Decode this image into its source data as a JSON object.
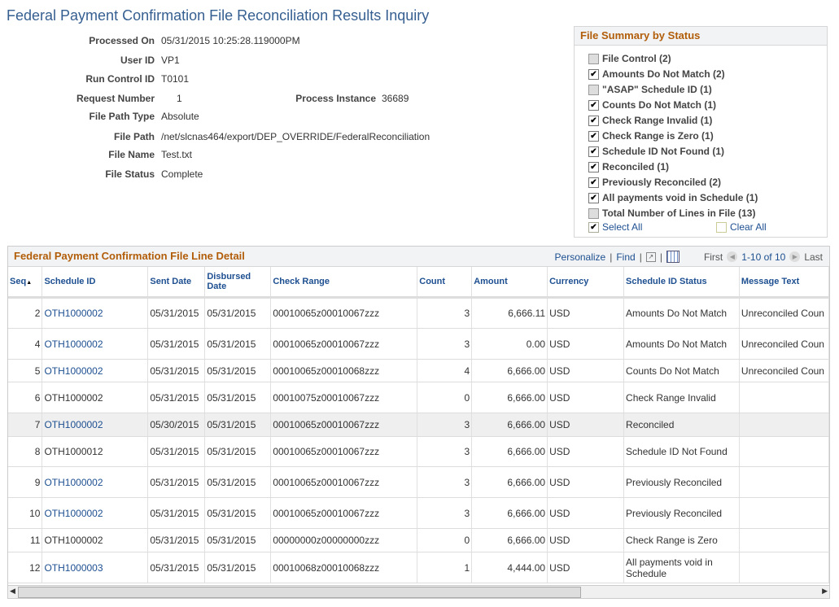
{
  "page_title": "Federal Payment Confirmation File Reconciliation Results Inquiry",
  "fields": {
    "processed_on": {
      "label": "Processed On",
      "value": "05/31/2015 10:25:28.119000PM"
    },
    "user_id": {
      "label": "User ID",
      "value": "VP1"
    },
    "run_control_id": {
      "label": "Run Control ID",
      "value": "T0101"
    },
    "request_number": {
      "label": "Request Number",
      "value": "1"
    },
    "process_instance": {
      "label": "Process Instance",
      "value": "36689"
    },
    "file_path_type": {
      "label": "File Path Type",
      "value": "Absolute"
    },
    "file_path": {
      "label": "File Path",
      "value": "/net/slcnas464/export/DEP_OVERRIDE/FederalReconciliation"
    },
    "file_name": {
      "label": "File Name",
      "value": "Test.txt"
    },
    "file_status": {
      "label": "File Status",
      "value": "Complete"
    }
  },
  "summary": {
    "title": "File Summary by Status",
    "items": [
      {
        "label": "File Control (2)",
        "checked": false,
        "disabled": true
      },
      {
        "label": "Amounts Do Not Match (2)",
        "checked": true,
        "disabled": false
      },
      {
        "label": "\"ASAP\" Schedule ID (1)",
        "checked": false,
        "disabled": true
      },
      {
        "label": "Counts Do Not Match (1)",
        "checked": true,
        "disabled": false
      },
      {
        "label": "Check Range Invalid (1)",
        "checked": true,
        "disabled": false
      },
      {
        "label": "Check Range is Zero (1)",
        "checked": true,
        "disabled": false
      },
      {
        "label": "Schedule ID Not Found (1)",
        "checked": true,
        "disabled": false
      },
      {
        "label": "Reconciled (1)",
        "checked": true,
        "disabled": false
      },
      {
        "label": "Previously Reconciled (2)",
        "checked": true,
        "disabled": false
      },
      {
        "label": "All payments void in Schedule (1)",
        "checked": true,
        "disabled": false
      },
      {
        "label": "Total Number of Lines in File (13)",
        "checked": false,
        "disabled": true
      }
    ],
    "select_all": "Select All",
    "clear_all": "Clear All"
  },
  "grid": {
    "title": "Federal Payment Confirmation File Line Detail",
    "personalize": "Personalize",
    "find": "Find",
    "first": "First",
    "range": "1-10 of 10",
    "last": "Last",
    "columns": [
      "Seq",
      "Schedule ID",
      "Sent Date",
      "Disbursed Date",
      "Check Range",
      "Count",
      "Amount",
      "Currency",
      "Schedule ID Status",
      "Message Text"
    ],
    "rows": [
      {
        "seq": "2",
        "sid": "OTH1000002",
        "link": true,
        "sent": "05/31/2015",
        "disb": "05/31/2015",
        "range": "00010065z00010067zzz",
        "count": "3",
        "amount": "6,666.11",
        "cur": "USD",
        "status": "Amounts Do Not Match",
        "msg": "Unreconciled Coun"
      },
      {
        "seq": "4",
        "sid": "OTH1000002",
        "link": true,
        "sent": "05/31/2015",
        "disb": "05/31/2015",
        "range": "00010065z00010067zzz",
        "count": "3",
        "amount": "0.00",
        "cur": "USD",
        "status": "Amounts Do Not Match",
        "msg": "Unreconciled Coun"
      },
      {
        "seq": "5",
        "sid": "OTH1000002",
        "link": true,
        "sent": "05/31/2015",
        "disb": "05/31/2015",
        "range": "00010065z00010068zzz",
        "count": "4",
        "amount": "6,666.00",
        "cur": "USD",
        "status": "Counts Do Not Match",
        "msg": "Unreconciled Coun"
      },
      {
        "seq": "6",
        "sid": "OTH1000002",
        "link": false,
        "sent": "05/31/2015",
        "disb": "05/31/2015",
        "range": "00010075z00010067zzz",
        "count": "0",
        "amount": "6,666.00",
        "cur": "USD",
        "status": "Check Range Invalid",
        "msg": ""
      },
      {
        "seq": "7",
        "sid": "OTH1000002",
        "link": true,
        "sent": "05/30/2015",
        "disb": "05/31/2015",
        "range": "00010065z00010067zzz",
        "count": "3",
        "amount": "6,666.00",
        "cur": "USD",
        "status": "Reconciled",
        "msg": ""
      },
      {
        "seq": "8",
        "sid": "OTH1000012",
        "link": false,
        "sent": "05/31/2015",
        "disb": "05/31/2015",
        "range": "00010065z00010067zzz",
        "count": "3",
        "amount": "6,666.00",
        "cur": "USD",
        "status": "Schedule ID Not Found",
        "msg": ""
      },
      {
        "seq": "9",
        "sid": "OTH1000002",
        "link": true,
        "sent": "05/31/2015",
        "disb": "05/31/2015",
        "range": "00010065z00010067zzz",
        "count": "3",
        "amount": "6,666.00",
        "cur": "USD",
        "status": "Previously Reconciled",
        "msg": ""
      },
      {
        "seq": "10",
        "sid": "OTH1000002",
        "link": true,
        "sent": "05/31/2015",
        "disb": "05/31/2015",
        "range": "00010065z00010067zzz",
        "count": "3",
        "amount": "6,666.00",
        "cur": "USD",
        "status": "Previously Reconciled",
        "msg": ""
      },
      {
        "seq": "11",
        "sid": "OTH1000002",
        "link": false,
        "sent": "05/31/2015",
        "disb": "05/31/2015",
        "range": "00000000z00000000zzz",
        "count": "0",
        "amount": "6,666.00",
        "cur": "USD",
        "status": "Check Range is Zero",
        "msg": ""
      },
      {
        "seq": "12",
        "sid": "OTH1000003",
        "link": true,
        "sent": "05/31/2015",
        "disb": "05/31/2015",
        "range": "00010068z00010068zzz",
        "count": "1",
        "amount": "4,444.00",
        "cur": "USD",
        "status": "All payments void in Schedule",
        "msg": ""
      }
    ]
  }
}
